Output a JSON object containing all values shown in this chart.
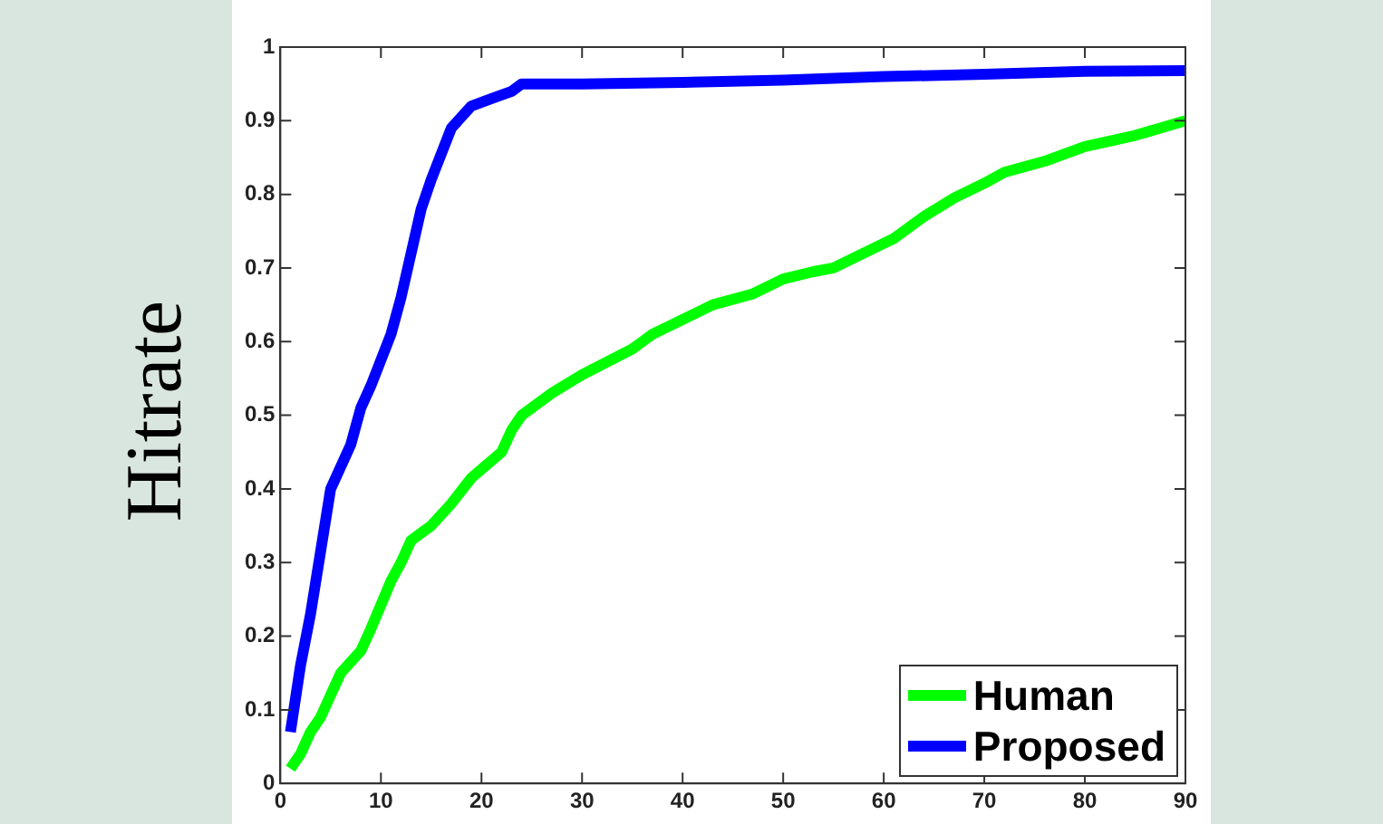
{
  "chart_data": {
    "type": "line",
    "ylabel": "Hitrate",
    "xlim": [
      0,
      90
    ],
    "ylim": [
      0,
      1
    ],
    "xticks": [
      0,
      10,
      20,
      30,
      40,
      50,
      60,
      70,
      80,
      90
    ],
    "yticks": [
      0,
      0.1,
      0.2,
      0.3,
      0.4,
      0.5,
      0.6,
      0.7,
      0.8,
      0.9,
      1
    ],
    "grid": false,
    "legend": "bottom right",
    "marker": "none",
    "line_style": "solid",
    "series": [
      {
        "name": "Human",
        "color": "#00ff00",
        "x": [
          1,
          2,
          3,
          4,
          5,
          6,
          8,
          9,
          11,
          12,
          13,
          14,
          15,
          17,
          19,
          22,
          23,
          24,
          27,
          30,
          35,
          36,
          37,
          40,
          43,
          47,
          50,
          53,
          55,
          58,
          61,
          64,
          67,
          70,
          72,
          76,
          80,
          85,
          90
        ],
        "values": [
          0.02,
          0.04,
          0.07,
          0.09,
          0.12,
          0.15,
          0.18,
          0.21,
          0.275,
          0.3,
          0.33,
          0.34,
          0.35,
          0.38,
          0.415,
          0.45,
          0.48,
          0.5,
          0.53,
          0.555,
          0.59,
          0.6,
          0.61,
          0.63,
          0.65,
          0.665,
          0.685,
          0.695,
          0.7,
          0.72,
          0.74,
          0.77,
          0.795,
          0.815,
          0.83,
          0.845,
          0.865,
          0.88,
          0.9
        ]
      },
      {
        "name": "Proposed",
        "color": "#0000ff",
        "x": [
          1,
          2,
          3,
          5,
          7,
          8,
          9,
          11,
          12,
          14,
          15,
          17,
          19,
          21,
          23,
          24,
          30,
          40,
          50,
          60,
          70,
          80,
          90
        ],
        "values": [
          0.07,
          0.16,
          0.23,
          0.4,
          0.46,
          0.51,
          0.54,
          0.61,
          0.66,
          0.78,
          0.82,
          0.89,
          0.92,
          0.93,
          0.94,
          0.95,
          0.95,
          0.952,
          0.955,
          0.96,
          0.963,
          0.967,
          0.968
        ]
      }
    ]
  }
}
